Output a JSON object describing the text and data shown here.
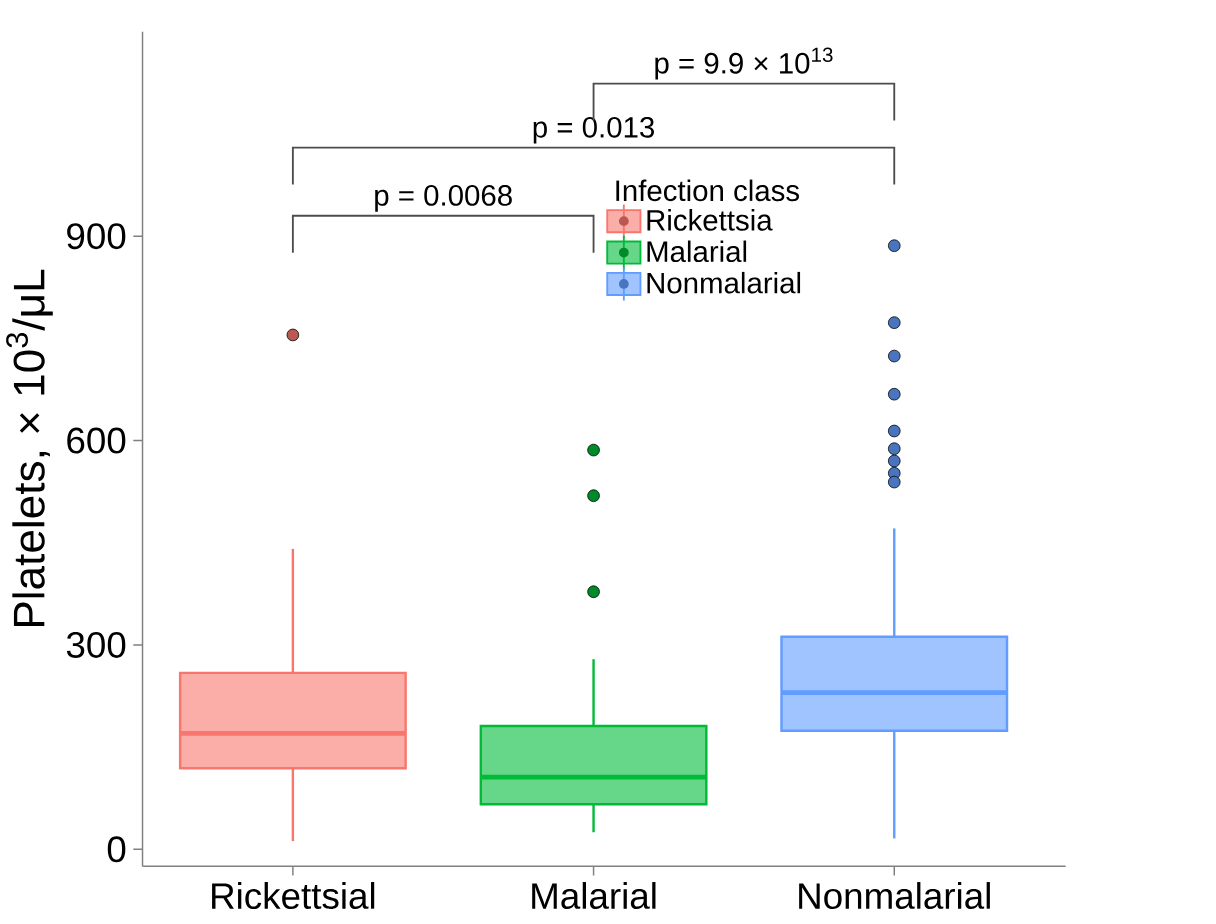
{
  "chart_data": {
    "type": "box",
    "ylabel": "Platelets, × 10$^{3}$/μL",
    "legend_title": "Infection class",
    "categories": [
      "Rickettsial",
      "Malarial",
      "Nonmalarial"
    ],
    "series": [
      {
        "name": "Rickettsia",
        "color": "#f8766d",
        "boxes": [
          {
            "low": 12,
            "q1": 119,
            "median": 170,
            "q3": 259,
            "high": 441,
            "outliers": [
              755
            ]
          },
          null,
          null
        ]
      },
      {
        "name": "Malarial",
        "color": "#00ba38",
        "boxes": [
          null,
          {
            "low": 25,
            "q1": 66,
            "median": 106,
            "q3": 181,
            "high": 279,
            "outliers": [
              586,
              519,
              378
            ]
          },
          null
        ]
      },
      {
        "name": "Nonmalarial",
        "color": "#619cff",
        "boxes": [
          null,
          null,
          {
            "low": 16,
            "q1": 174,
            "median": 230,
            "q3": 312,
            "high": 471,
            "outliers": [
              886,
              773,
              724,
              668,
              614,
              588,
              570,
              552,
              539
            ]
          }
        ]
      }
    ],
    "ylim": [
      -25,
      1200
    ],
    "yticks": [
      0,
      300,
      600,
      900
    ],
    "grid": false,
    "legend": "top",
    "annotations": [
      "p = 0.0068",
      "p = 0.013",
      "p = 9.9 × 10$^{13}$"
    ]
  }
}
